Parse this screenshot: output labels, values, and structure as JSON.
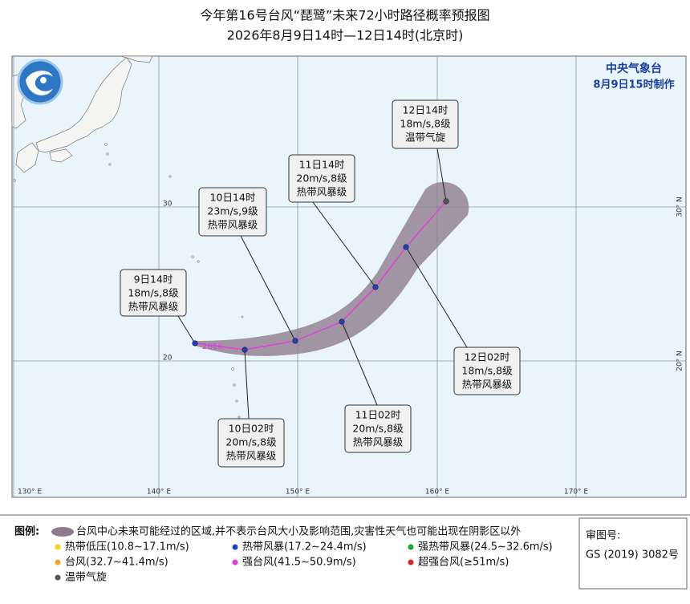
{
  "header": {
    "title": "今年第16号台风“琵鹭”未来72小时路径概率预报图",
    "subtitle": "2026年8月9日14时—12日14时(北京时)"
  },
  "agency": {
    "name": "中央气象台",
    "issued": "8月9日15时制作"
  },
  "map": {
    "storm_id": "2616",
    "longitude_labels": [
      "130° E",
      "140° E",
      "150° E",
      "160° E",
      "170° E"
    ],
    "latitude_labels": [
      "30° N",
      "20° N"
    ],
    "grid_labels": [
      "30",
      "20"
    ]
  },
  "track": [
    {
      "time": "9日14时",
      "wind": "18m/s,8级",
      "level": "热带风暴级"
    },
    {
      "time": "10日02时",
      "wind": "20m/s,8级",
      "level": "热带风暴级"
    },
    {
      "time": "10日14时",
      "wind": "23m/s,9级",
      "level": "热带风暴级"
    },
    {
      "time": "11日02时",
      "wind": "20m/s,8级",
      "level": "热带风暴级"
    },
    {
      "time": "11日14时",
      "wind": "20m/s,8级",
      "level": "热带风暴级"
    },
    {
      "time": "12日02时",
      "wind": "18m/s,8级",
      "level": "热带风暴级"
    },
    {
      "time": "12日14时",
      "wind": "18m/s,8级",
      "level": "温带气旋"
    }
  ],
  "legend": {
    "title": "图例:",
    "cone": "台风中心未来可能经过的区域,并不表示台风大小及影响范围,灾害性天气也可能出现在阴影区以外",
    "items": [
      {
        "label": "热带低压(10.8~17.1m/s)",
        "color": "#f2d21b"
      },
      {
        "label": "热带风暴(17.2~24.4m/s)",
        "color": "#1f3fbf"
      },
      {
        "label": "强热带风暴(24.5~32.6m/s)",
        "color": "#1aa33a"
      },
      {
        "label": "台风(32.7~41.4m/s)",
        "color": "#f5a623"
      },
      {
        "label": "强台风(41.5~50.9m/s)",
        "color": "#e23de0"
      },
      {
        "label": "超强台风(≥51m/s)",
        "color": "#e0201b"
      },
      {
        "label": "温带气旋",
        "color": "#555555"
      }
    ]
  },
  "review": {
    "label": "审图号:",
    "number": "GS (2019) 3082号"
  }
}
